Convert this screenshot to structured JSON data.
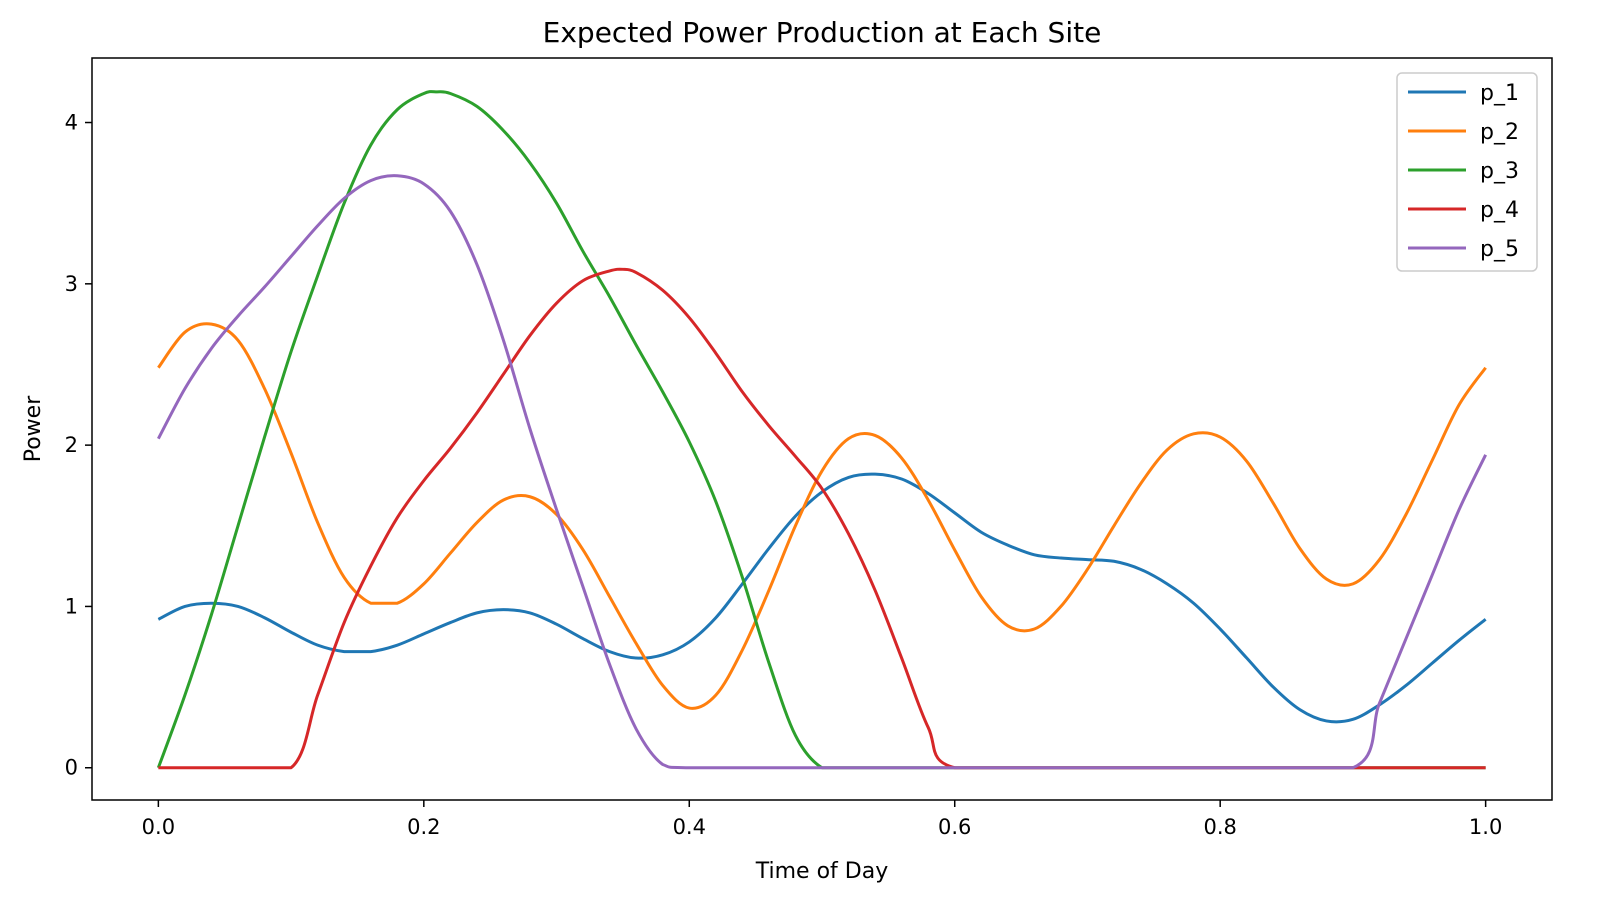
{
  "chart_data": {
    "type": "line",
    "title": "Expected Power Production at Each Site",
    "xlabel": "Time of Day",
    "ylabel": "Power",
    "xlim": [
      -0.05,
      1.05
    ],
    "ylim": [
      -0.2,
      4.4
    ],
    "xticks": [
      0.0,
      0.2,
      0.4,
      0.6,
      0.8,
      1.0
    ],
    "xtick_labels": [
      "0.0",
      "0.2",
      "0.4",
      "0.6",
      "0.8",
      "1.0"
    ],
    "yticks": [
      0,
      1,
      2,
      3,
      4
    ],
    "ytick_labels": [
      "0",
      "1",
      "2",
      "3",
      "4"
    ],
    "grid": false,
    "legend_position": "top-right",
    "series": [
      {
        "name": "p_1",
        "color": "#1f77b4",
        "x": [
          0,
          0.02,
          0.04,
          0.06,
          0.08,
          0.1,
          0.12,
          0.14,
          0.16,
          0.18,
          0.2,
          0.22,
          0.24,
          0.26,
          0.28,
          0.3,
          0.32,
          0.34,
          0.36,
          0.38,
          0.4,
          0.42,
          0.44,
          0.46,
          0.48,
          0.5,
          0.52,
          0.54,
          0.56,
          0.58,
          0.6,
          0.62,
          0.64,
          0.66,
          0.68,
          0.7,
          0.72,
          0.74,
          0.76,
          0.78,
          0.8,
          0.82,
          0.84,
          0.86,
          0.88,
          0.9,
          0.92,
          0.94,
          0.96,
          0.98,
          1.0
        ],
        "y": [
          0.92,
          1.0,
          1.02,
          1.0,
          0.93,
          0.84,
          0.76,
          0.72,
          0.72,
          0.76,
          0.83,
          0.9,
          0.96,
          0.98,
          0.96,
          0.89,
          0.8,
          0.72,
          0.68,
          0.7,
          0.78,
          0.93,
          1.14,
          1.36,
          1.56,
          1.71,
          1.8,
          1.82,
          1.79,
          1.7,
          1.58,
          1.46,
          1.38,
          1.32,
          1.3,
          1.29,
          1.28,
          1.23,
          1.14,
          1.02,
          0.86,
          0.68,
          0.5,
          0.36,
          0.29,
          0.3,
          0.39,
          0.51,
          0.65,
          0.79,
          0.92
        ]
      },
      {
        "name": "p_2",
        "color": "#ff7f0e",
        "x": [
          0,
          0.02,
          0.04,
          0.06,
          0.08,
          0.1,
          0.12,
          0.14,
          0.16,
          0.18,
          0.2,
          0.22,
          0.24,
          0.26,
          0.28,
          0.3,
          0.32,
          0.34,
          0.36,
          0.38,
          0.4,
          0.42,
          0.44,
          0.46,
          0.48,
          0.5,
          0.52,
          0.54,
          0.56,
          0.58,
          0.6,
          0.62,
          0.64,
          0.66,
          0.68,
          0.7,
          0.72,
          0.74,
          0.76,
          0.78,
          0.8,
          0.82,
          0.84,
          0.86,
          0.88,
          0.9,
          0.92,
          0.94,
          0.96,
          0.98,
          1.0
        ],
        "y": [
          2.48,
          2.7,
          2.75,
          2.65,
          2.35,
          1.95,
          1.52,
          1.18,
          1.02,
          1.02,
          1.14,
          1.33,
          1.52,
          1.66,
          1.68,
          1.57,
          1.35,
          1.06,
          0.77,
          0.51,
          0.37,
          0.45,
          0.73,
          1.1,
          1.5,
          1.84,
          2.04,
          2.06,
          1.92,
          1.66,
          1.35,
          1.06,
          0.88,
          0.86,
          1.0,
          1.23,
          1.5,
          1.76,
          1.97,
          2.07,
          2.05,
          1.9,
          1.64,
          1.36,
          1.17,
          1.14,
          1.29,
          1.57,
          1.91,
          2.25,
          2.48
        ]
      },
      {
        "name": "p_3",
        "color": "#2ca02c",
        "x": [
          0,
          0.02,
          0.04,
          0.06,
          0.08,
          0.1,
          0.12,
          0.14,
          0.16,
          0.18,
          0.2,
          0.21,
          0.22,
          0.24,
          0.26,
          0.28,
          0.3,
          0.32,
          0.34,
          0.36,
          0.38,
          0.4,
          0.42,
          0.44,
          0.46,
          0.48,
          0.5,
          0.52,
          0.6,
          0.7,
          0.8,
          0.9,
          1.0
        ],
        "y": [
          0,
          0.45,
          0.95,
          1.5,
          2.05,
          2.58,
          3.05,
          3.5,
          3.86,
          4.08,
          4.18,
          4.19,
          4.18,
          4.1,
          3.95,
          3.75,
          3.5,
          3.2,
          2.92,
          2.62,
          2.33,
          2.02,
          1.65,
          1.18,
          0.65,
          0.2,
          0,
          0,
          0,
          0,
          0,
          0,
          0
        ]
      },
      {
        "name": "p_4",
        "color": "#d62728",
        "x": [
          0,
          0.05,
          0.1,
          0.12,
          0.14,
          0.16,
          0.18,
          0.2,
          0.22,
          0.24,
          0.26,
          0.28,
          0.3,
          0.32,
          0.34,
          0.35,
          0.36,
          0.38,
          0.4,
          0.42,
          0.44,
          0.46,
          0.48,
          0.5,
          0.52,
          0.54,
          0.56,
          0.58,
          0.6,
          0.7,
          0.8,
          0.9,
          1.0
        ],
        "y": [
          0,
          0,
          0,
          0.45,
          0.9,
          1.25,
          1.55,
          1.78,
          1.98,
          2.2,
          2.44,
          2.68,
          2.88,
          3.02,
          3.08,
          3.09,
          3.07,
          2.96,
          2.79,
          2.57,
          2.33,
          2.12,
          1.93,
          1.73,
          1.45,
          1.1,
          0.68,
          0.25,
          0,
          0,
          0,
          0,
          0
        ]
      },
      {
        "name": "p_5",
        "color": "#9467bd",
        "x": [
          0,
          0.02,
          0.04,
          0.06,
          0.08,
          0.1,
          0.12,
          0.14,
          0.16,
          0.18,
          0.2,
          0.22,
          0.24,
          0.26,
          0.28,
          0.3,
          0.32,
          0.34,
          0.36,
          0.38,
          0.4,
          0.5,
          0.6,
          0.7,
          0.8,
          0.9,
          0.92,
          0.94,
          0.96,
          0.98,
          1.0
        ],
        "y": [
          2.04,
          2.35,
          2.6,
          2.8,
          2.98,
          3.17,
          3.36,
          3.53,
          3.64,
          3.67,
          3.62,
          3.45,
          3.12,
          2.65,
          2.1,
          1.6,
          1.12,
          0.64,
          0.24,
          0.02,
          0,
          0,
          0,
          0,
          0,
          0,
          0.4,
          0.8,
          1.2,
          1.6,
          1.94
        ]
      }
    ]
  }
}
